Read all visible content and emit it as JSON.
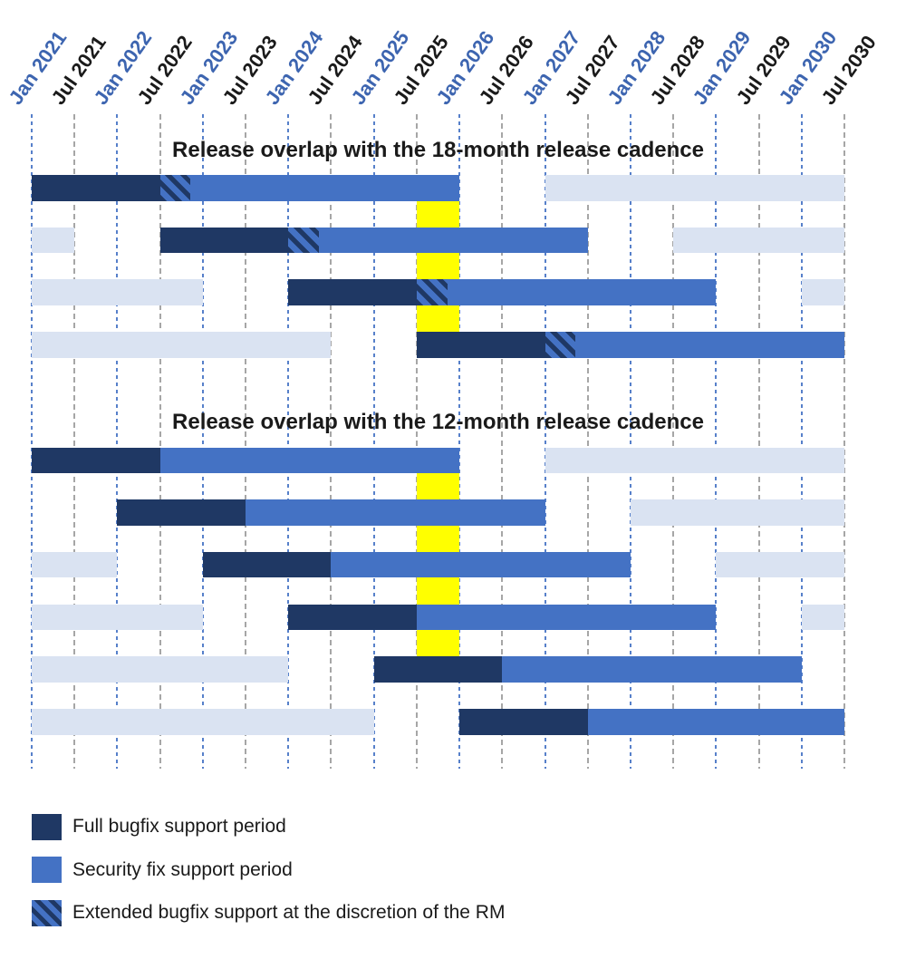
{
  "legend": {
    "items": [
      {
        "swatch": "dark",
        "label": "Full bugfix support period"
      },
      {
        "swatch": "blue",
        "label": "Security fix support period"
      },
      {
        "swatch": "hatch",
        "label": "Extended bugfix support at the discretion of the RM"
      }
    ]
  },
  "colors": {
    "full_bugfix": "#1F3864",
    "security_fix": "#4472C4",
    "adjacent_release_faded": "#DAE3F2",
    "highlight_band": "#FFFF00",
    "jan_gridline": "#4472C4",
    "jul_gridline": "#A6A6A6",
    "jan_label_text": "#3D65B0",
    "jul_label_text": "#1A1A1A"
  },
  "chart_data": {
    "type": "bar",
    "variant": "gantt-release-timeline",
    "x_axis": {
      "unit": "months since Jan 2021",
      "range_months": [
        0,
        114
      ],
      "grid": true,
      "ticks": [
        {
          "label": "Jan 2021",
          "month": 0,
          "style": "jan"
        },
        {
          "label": "Jul 2021",
          "month": 6,
          "style": "jul"
        },
        {
          "label": "Jan 2022",
          "month": 12,
          "style": "jan"
        },
        {
          "label": "Jul 2022",
          "month": 18,
          "style": "jul"
        },
        {
          "label": "Jan 2023",
          "month": 24,
          "style": "jan"
        },
        {
          "label": "Jul 2023",
          "month": 30,
          "style": "jul"
        },
        {
          "label": "Jan 2024",
          "month": 36,
          "style": "jan"
        },
        {
          "label": "Jul 2024",
          "month": 42,
          "style": "jul"
        },
        {
          "label": "Jan 2025",
          "month": 48,
          "style": "jan"
        },
        {
          "label": "Jul 2025",
          "month": 54,
          "style": "jul"
        },
        {
          "label": "Jan 2026",
          "month": 60,
          "style": "jan"
        },
        {
          "label": "Jul 2026",
          "month": 66,
          "style": "jul"
        },
        {
          "label": "Jan 2027",
          "month": 72,
          "style": "jan"
        },
        {
          "label": "Jul 2027",
          "month": 78,
          "style": "jul"
        },
        {
          "label": "Jan 2028",
          "month": 84,
          "style": "jan"
        },
        {
          "label": "Jul 2028",
          "month": 90,
          "style": "jul"
        },
        {
          "label": "Jan 2029",
          "month": 96,
          "style": "jan"
        },
        {
          "label": "Jul 2029",
          "month": 102,
          "style": "jul"
        },
        {
          "label": "Jan 2030",
          "month": 108,
          "style": "jan"
        },
        {
          "label": "Jul 2030",
          "month": 114,
          "style": "jul"
        }
      ]
    },
    "highlight_band": {
      "from_month": 54,
      "to_month": 60,
      "label": "Jul 2025 - Jan 2026",
      "color": "#FFFF00"
    },
    "segment_types": {
      "dark": "Full bugfix support period",
      "blue": "Security fix support period",
      "hatch": "Extended bugfix support at the discretion of the RM",
      "light": "Adjacent release in the same slot (faded)"
    },
    "sections": [
      {
        "title": "Release overlap with the 18-month release cadence",
        "band_from_row": 1,
        "band_to_row": 4,
        "rows": [
          {
            "segments": [
              {
                "type": "dark",
                "from": 0,
                "to": 18
              },
              {
                "type": "hatch",
                "from": 18,
                "to": 22.3
              },
              {
                "type": "blue",
                "from": 22.3,
                "to": 60
              },
              {
                "type": "light",
                "from": 72,
                "to": 114
              }
            ]
          },
          {
            "segments": [
              {
                "type": "light",
                "from": 0,
                "to": 6
              },
              {
                "type": "dark",
                "from": 18,
                "to": 36
              },
              {
                "type": "hatch",
                "from": 36,
                "to": 40.3
              },
              {
                "type": "blue",
                "from": 40.3,
                "to": 78
              },
              {
                "type": "light",
                "from": 90,
                "to": 114
              }
            ]
          },
          {
            "segments": [
              {
                "type": "light",
                "from": 0,
                "to": 24
              },
              {
                "type": "dark",
                "from": 36,
                "to": 54
              },
              {
                "type": "hatch",
                "from": 54,
                "to": 58.3
              },
              {
                "type": "blue",
                "from": 58.3,
                "to": 96
              },
              {
                "type": "light",
                "from": 108,
                "to": 114
              }
            ]
          },
          {
            "segments": [
              {
                "type": "light",
                "from": 0,
                "to": 42
              },
              {
                "type": "dark",
                "from": 54,
                "to": 72
              },
              {
                "type": "hatch",
                "from": 72,
                "to": 76.3
              },
              {
                "type": "blue",
                "from": 76.3,
                "to": 114
              }
            ]
          }
        ]
      },
      {
        "title": "Release overlap with the 12-month release cadence",
        "band_from_row": 1,
        "band_to_row": 5,
        "rows": [
          {
            "segments": [
              {
                "type": "dark",
                "from": 0,
                "to": 18
              },
              {
                "type": "blue",
                "from": 18,
                "to": 60
              },
              {
                "type": "light",
                "from": 72,
                "to": 114
              }
            ]
          },
          {
            "segments": [
              {
                "type": "dark",
                "from": 12,
                "to": 30
              },
              {
                "type": "blue",
                "from": 30,
                "to": 72
              },
              {
                "type": "light",
                "from": 84,
                "to": 114
              }
            ]
          },
          {
            "segments": [
              {
                "type": "light",
                "from": 0,
                "to": 12
              },
              {
                "type": "dark",
                "from": 24,
                "to": 42
              },
              {
                "type": "blue",
                "from": 42,
                "to": 84
              },
              {
                "type": "light",
                "from": 96,
                "to": 114
              }
            ]
          },
          {
            "segments": [
              {
                "type": "light",
                "from": 0,
                "to": 24
              },
              {
                "type": "dark",
                "from": 36,
                "to": 54
              },
              {
                "type": "blue",
                "from": 54,
                "to": 96
              },
              {
                "type": "light",
                "from": 108,
                "to": 114
              }
            ]
          },
          {
            "segments": [
              {
                "type": "light",
                "from": 0,
                "to": 36
              },
              {
                "type": "dark",
                "from": 48,
                "to": 66
              },
              {
                "type": "blue",
                "from": 66,
                "to": 108
              }
            ]
          },
          {
            "segments": [
              {
                "type": "light",
                "from": 0,
                "to": 48
              },
              {
                "type": "dark",
                "from": 60,
                "to": 78
              },
              {
                "type": "blue",
                "from": 78,
                "to": 114
              }
            ]
          }
        ]
      }
    ]
  }
}
